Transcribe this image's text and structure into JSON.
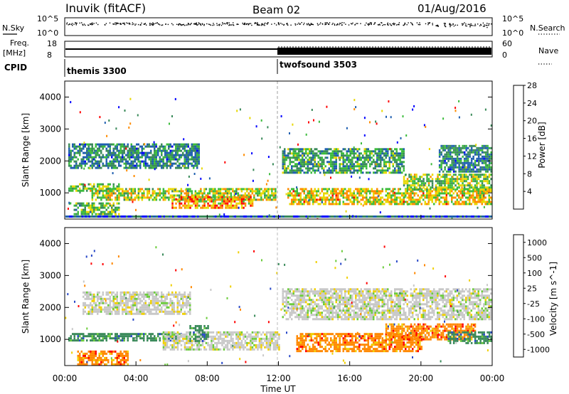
{
  "header": {
    "title": "Inuvik (fitACF)",
    "beam": "Beam 02",
    "date": "01/Aug/2016"
  },
  "top_panels": {
    "nsky_label": "N.Sky",
    "nsky_ticks": [
      "10^5",
      "10^0"
    ],
    "nsearch_label": "N.Search",
    "nsearch_ticks": [
      "10^5",
      "10^0"
    ],
    "freq_label": "Freq.",
    "freq_unit": "[MHz]",
    "freq_ticks": [
      "18",
      "8"
    ],
    "nave_label": "Nave",
    "nave_ticks": [
      "60",
      "0"
    ],
    "cpid_label": "CPID",
    "cpid_modes": [
      {
        "name": "themis 3300",
        "start_hour": 0
      },
      {
        "name": "twofsound 3503",
        "start_hour": 12
      }
    ]
  },
  "chart_data": [
    {
      "type": "heatmap",
      "name": "power-panel",
      "ylabel": "Slant Range [km]",
      "xlabel": "",
      "xlim": [
        0,
        24
      ],
      "ylim": [
        180,
        4500
      ],
      "yticks": [
        "1000",
        "2000",
        "3000",
        "4000"
      ],
      "colorbar": {
        "label": "Power [dB]",
        "ticks": [
          "4",
          "8",
          "12",
          "16",
          "20",
          "24",
          "28"
        ],
        "range": [
          0,
          30
        ],
        "colors": [
          "#0000ff",
          "#1f5fb0",
          "#3a8a5a",
          "#3cbc3c",
          "#e8d800",
          "#ff8c00",
          "#ff0000"
        ]
      },
      "regions": [
        {
          "t0": 0.2,
          "t1": 7.5,
          "r0": 1750,
          "r1": 2550,
          "level": 10
        },
        {
          "t0": 0.2,
          "t1": 3.0,
          "r0": 1050,
          "r1": 1300,
          "level": 16
        },
        {
          "t0": 1.5,
          "t1": 11.8,
          "r0": 800,
          "r1": 1150,
          "level": 18
        },
        {
          "t0": 6.0,
          "t1": 10.5,
          "r0": 500,
          "r1": 900,
          "level": 22
        },
        {
          "t0": 0.5,
          "t1": 3.0,
          "r0": 300,
          "r1": 700,
          "level": 14
        },
        {
          "t0": 12.2,
          "t1": 19.0,
          "r0": 1650,
          "r1": 2400,
          "level": 12
        },
        {
          "t0": 12.5,
          "t1": 24.0,
          "r0": 650,
          "r1": 1150,
          "level": 20
        },
        {
          "t0": 19.0,
          "t1": 24.0,
          "r0": 1100,
          "r1": 1600,
          "level": 16
        },
        {
          "t0": 21.0,
          "t1": 24.0,
          "r0": 1650,
          "r1": 2500,
          "level": 10
        }
      ]
    },
    {
      "type": "heatmap",
      "name": "velocity-panel",
      "ylabel": "Slant Range [km]",
      "xlabel": "Time UT",
      "xlim": [
        0,
        24
      ],
      "ylim": [
        180,
        4500
      ],
      "xticks": [
        "00:00",
        "04:00",
        "08:00",
        "12:00",
        "16:00",
        "20:00",
        "00:00"
      ],
      "yticks": [
        "1000",
        "2000",
        "3000",
        "4000"
      ],
      "colorbar": {
        "label": "Velocity [m s^-1]",
        "ticks": [
          "1000",
          "500",
          "100",
          "25",
          "-25",
          "-100",
          "-500",
          "-1000"
        ],
        "colors": [
          "#2848c8",
          "#3a8a5a",
          "#6ccc3c",
          "#c8c8c8",
          "#f0d000",
          "#ff8800",
          "#ff0000"
        ]
      },
      "regions": [
        {
          "t0": 1.0,
          "t1": 7.0,
          "r0": 1800,
          "r1": 2500,
          "color_index": 3
        },
        {
          "t0": 0.2,
          "t1": 6.5,
          "r0": 950,
          "r1": 1200,
          "color_index": 1
        },
        {
          "t0": 5.5,
          "t1": 12.0,
          "r0": 700,
          "r1": 1250,
          "color_index": 3
        },
        {
          "t0": 7.0,
          "t1": 8.0,
          "r0": 950,
          "r1": 1450,
          "color_index": 1
        },
        {
          "t0": 0.7,
          "t1": 3.5,
          "r0": 180,
          "r1": 650,
          "color_index": 5
        },
        {
          "t0": 12.2,
          "t1": 24.0,
          "r0": 1600,
          "r1": 2600,
          "color_index": 3
        },
        {
          "t0": 13.0,
          "t1": 20.0,
          "r0": 650,
          "r1": 1200,
          "color_index": 5
        },
        {
          "t0": 18.0,
          "t1": 23.0,
          "r0": 1000,
          "r1": 1500,
          "color_index": 5
        },
        {
          "t0": 21.5,
          "t1": 24.0,
          "r0": 900,
          "r1": 1250,
          "color_index": 1
        }
      ]
    }
  ]
}
